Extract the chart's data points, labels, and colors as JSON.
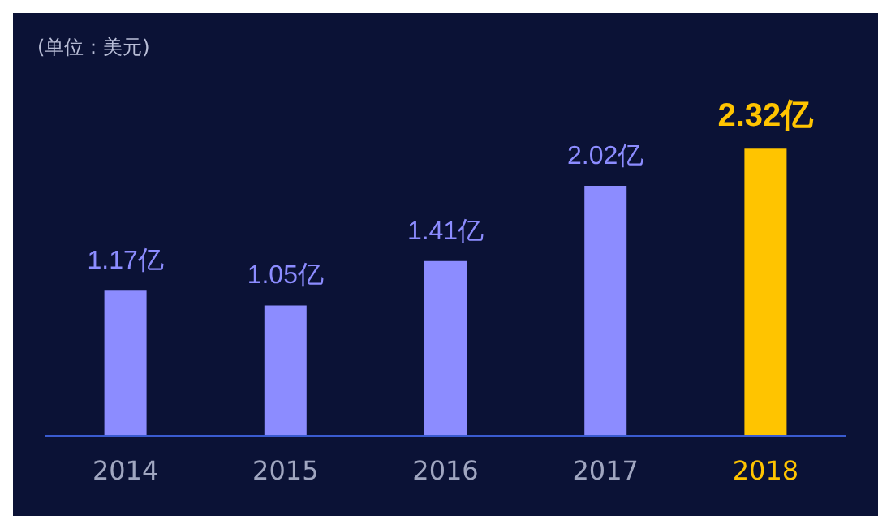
{
  "chart_data": {
    "type": "bar",
    "subtitle": "(单位：美元)",
    "categories": [
      "2014",
      "2015",
      "2016",
      "2017",
      "2018"
    ],
    "values": [
      1.17,
      1.05,
      1.41,
      2.02,
      2.32
    ],
    "colors": [
      "#8c8cff",
      "#8c8cff",
      "#8c8cff",
      "#8c8cff",
      "#ffc400"
    ],
    "value_labels": [
      "1.17亿",
      "1.05亿",
      "1.41亿",
      "2.02亿",
      "2.32亿"
    ]
  }
}
